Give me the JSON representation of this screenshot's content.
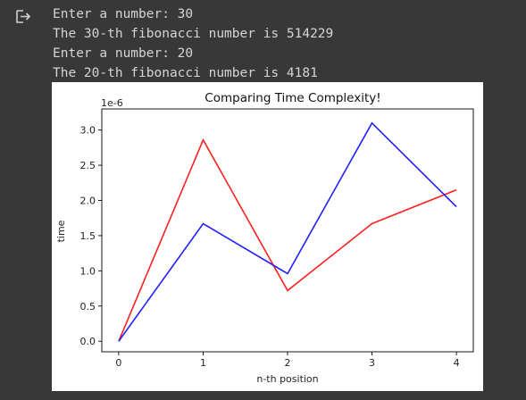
{
  "output": {
    "icon": "output-redirect-icon",
    "lines": [
      "Enter a number: 30",
      "The 30-th fibonacci number is 514229",
      "Enter a number: 20",
      "The 20-th fibonacci number is 4181"
    ]
  },
  "chart_data": {
    "type": "line",
    "title": "Comparing Time Complexity!",
    "xlabel": "n-th position",
    "ylabel": "time",
    "y_scale_label": "1e-6",
    "x": [
      0,
      1,
      2,
      3,
      4
    ],
    "xticks": [
      "0",
      "1",
      "2",
      "3",
      "4"
    ],
    "yticks": [
      "0.0",
      "0.5",
      "1.0",
      "1.5",
      "2.0",
      "2.5",
      "3.0"
    ],
    "xlim": [
      -0.2,
      4.2
    ],
    "ylim": [
      -0.15,
      3.3
    ],
    "grid": false,
    "series": [
      {
        "color": "#ff2020",
        "values": [
          0.0,
          2.86,
          0.72,
          1.67,
          2.15
        ]
      },
      {
        "color": "#2020ff",
        "values": [
          0.0,
          1.67,
          0.96,
          3.1,
          1.91
        ]
      }
    ]
  }
}
